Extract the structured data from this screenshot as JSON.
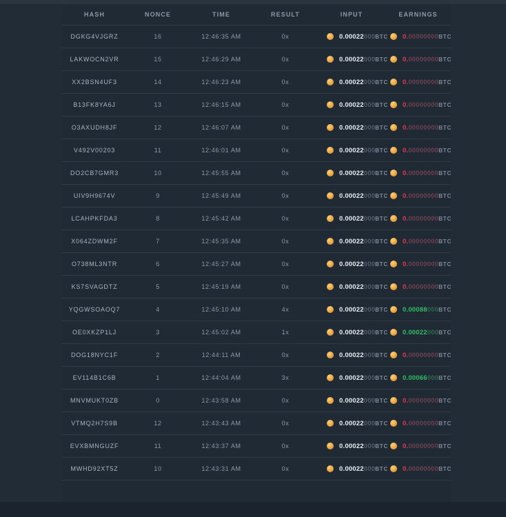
{
  "table": {
    "columns": [
      "HASH",
      "NONCE",
      "TIME",
      "RESULT",
      "INPUT",
      "EARNINGS"
    ],
    "btc_label": "BTC",
    "rows": [
      {
        "hash": "DGKG4VJGRZ",
        "nonce": "16",
        "time": "12:46:35 AM",
        "result": "0x",
        "input_strong": "0.00022",
        "input_dim": "000",
        "earn_strong": "0.",
        "earn_dim": "00000000",
        "earn_state": "zero"
      },
      {
        "hash": "LAKWOCN2VR",
        "nonce": "15",
        "time": "12:46:29 AM",
        "result": "0x",
        "input_strong": "0.00022",
        "input_dim": "000",
        "earn_strong": "0.",
        "earn_dim": "00000000",
        "earn_state": "zero"
      },
      {
        "hash": "XX2BSN4UF3",
        "nonce": "14",
        "time": "12:46:23 AM",
        "result": "0x",
        "input_strong": "0.00022",
        "input_dim": "000",
        "earn_strong": "0.",
        "earn_dim": "00000000",
        "earn_state": "zero"
      },
      {
        "hash": "B13FK8YA6J",
        "nonce": "13",
        "time": "12:46:15 AM",
        "result": "0x",
        "input_strong": "0.00022",
        "input_dim": "000",
        "earn_strong": "0.",
        "earn_dim": "00000000",
        "earn_state": "zero"
      },
      {
        "hash": "O3AXUDH8JF",
        "nonce": "12",
        "time": "12:46:07 AM",
        "result": "0x",
        "input_strong": "0.00022",
        "input_dim": "000",
        "earn_strong": "0.",
        "earn_dim": "00000000",
        "earn_state": "zero"
      },
      {
        "hash": "V492V00203",
        "nonce": "11",
        "time": "12:46:01 AM",
        "result": "0x",
        "input_strong": "0.00022",
        "input_dim": "000",
        "earn_strong": "0.",
        "earn_dim": "00000000",
        "earn_state": "zero"
      },
      {
        "hash": "DO2CB7GMR3",
        "nonce": "10",
        "time": "12:45:55 AM",
        "result": "0x",
        "input_strong": "0.00022",
        "input_dim": "000",
        "earn_strong": "0.",
        "earn_dim": "00000000",
        "earn_state": "zero"
      },
      {
        "hash": "UIV9H9674V",
        "nonce": "9",
        "time": "12:45:49 AM",
        "result": "0x",
        "input_strong": "0.00022",
        "input_dim": "000",
        "earn_strong": "0.",
        "earn_dim": "00000000",
        "earn_state": "zero"
      },
      {
        "hash": "LCAHPKFDA3",
        "nonce": "8",
        "time": "12:45:42 AM",
        "result": "0x",
        "input_strong": "0.00022",
        "input_dim": "000",
        "earn_strong": "0.",
        "earn_dim": "00000000",
        "earn_state": "zero"
      },
      {
        "hash": "X064ZDWM2F",
        "nonce": "7",
        "time": "12:45:35 AM",
        "result": "0x",
        "input_strong": "0.00022",
        "input_dim": "000",
        "earn_strong": "0.",
        "earn_dim": "00000000",
        "earn_state": "zero"
      },
      {
        "hash": "O738ML3NTR",
        "nonce": "6",
        "time": "12:45:27 AM",
        "result": "0x",
        "input_strong": "0.00022",
        "input_dim": "000",
        "earn_strong": "0.",
        "earn_dim": "00000000",
        "earn_state": "zero"
      },
      {
        "hash": "KS7SVAGDTZ",
        "nonce": "5",
        "time": "12:45:19 AM",
        "result": "0x",
        "input_strong": "0.00022",
        "input_dim": "000",
        "earn_strong": "0.",
        "earn_dim": "00000000",
        "earn_state": "zero"
      },
      {
        "hash": "YQGWSOAOQ7",
        "nonce": "4",
        "time": "12:45:10 AM",
        "result": "4x",
        "input_strong": "0.00022",
        "input_dim": "000",
        "earn_strong": "0.00088",
        "earn_dim": "000",
        "earn_state": "win"
      },
      {
        "hash": "OE0XKZP1LJ",
        "nonce": "3",
        "time": "12:45:02 AM",
        "result": "1x",
        "input_strong": "0.00022",
        "input_dim": "000",
        "earn_strong": "0.00022",
        "earn_dim": "000",
        "earn_state": "win"
      },
      {
        "hash": "DOG18NYC1F",
        "nonce": "2",
        "time": "12:44:11 AM",
        "result": "0x",
        "input_strong": "0.00022",
        "input_dim": "000",
        "earn_strong": "0.",
        "earn_dim": "00000000",
        "earn_state": "zero"
      },
      {
        "hash": "EV114B1C6B",
        "nonce": "1",
        "time": "12:44:04 AM",
        "result": "3x",
        "input_strong": "0.00022",
        "input_dim": "000",
        "earn_strong": "0.00066",
        "earn_dim": "000",
        "earn_state": "win"
      },
      {
        "hash": "MNVMUKT0ZB",
        "nonce": "0",
        "time": "12:43:58 AM",
        "result": "0x",
        "input_strong": "0.00022",
        "input_dim": "000",
        "earn_strong": "0.",
        "earn_dim": "00000000",
        "earn_state": "zero"
      },
      {
        "hash": "VTMQ2H7S9B",
        "nonce": "12",
        "time": "12:43:43 AM",
        "result": "0x",
        "input_strong": "0.00022",
        "input_dim": "000",
        "earn_strong": "0.",
        "earn_dim": "00000000",
        "earn_state": "zero"
      },
      {
        "hash": "EVXBMNGUZF",
        "nonce": "11",
        "time": "12:43:37 AM",
        "result": "0x",
        "input_strong": "0.00022",
        "input_dim": "000",
        "earn_strong": "0.",
        "earn_dim": "00000000",
        "earn_state": "zero"
      },
      {
        "hash": "MWHD92XT5Z",
        "nonce": "10",
        "time": "12:43:31 AM",
        "result": "0x",
        "input_strong": "0.00022",
        "input_dim": "000",
        "earn_strong": "0.",
        "earn_dim": "00000000",
        "earn_state": "zero"
      }
    ]
  },
  "colors": {
    "background": "#222c37",
    "panel": "#202a35",
    "separator": "#303b47",
    "coin_orange": "#e9a23b",
    "loss_red": "#e0394f",
    "win_green": "#2fbe62",
    "text_primary": "#e9eef3",
    "text_muted": "#8d99a6"
  }
}
